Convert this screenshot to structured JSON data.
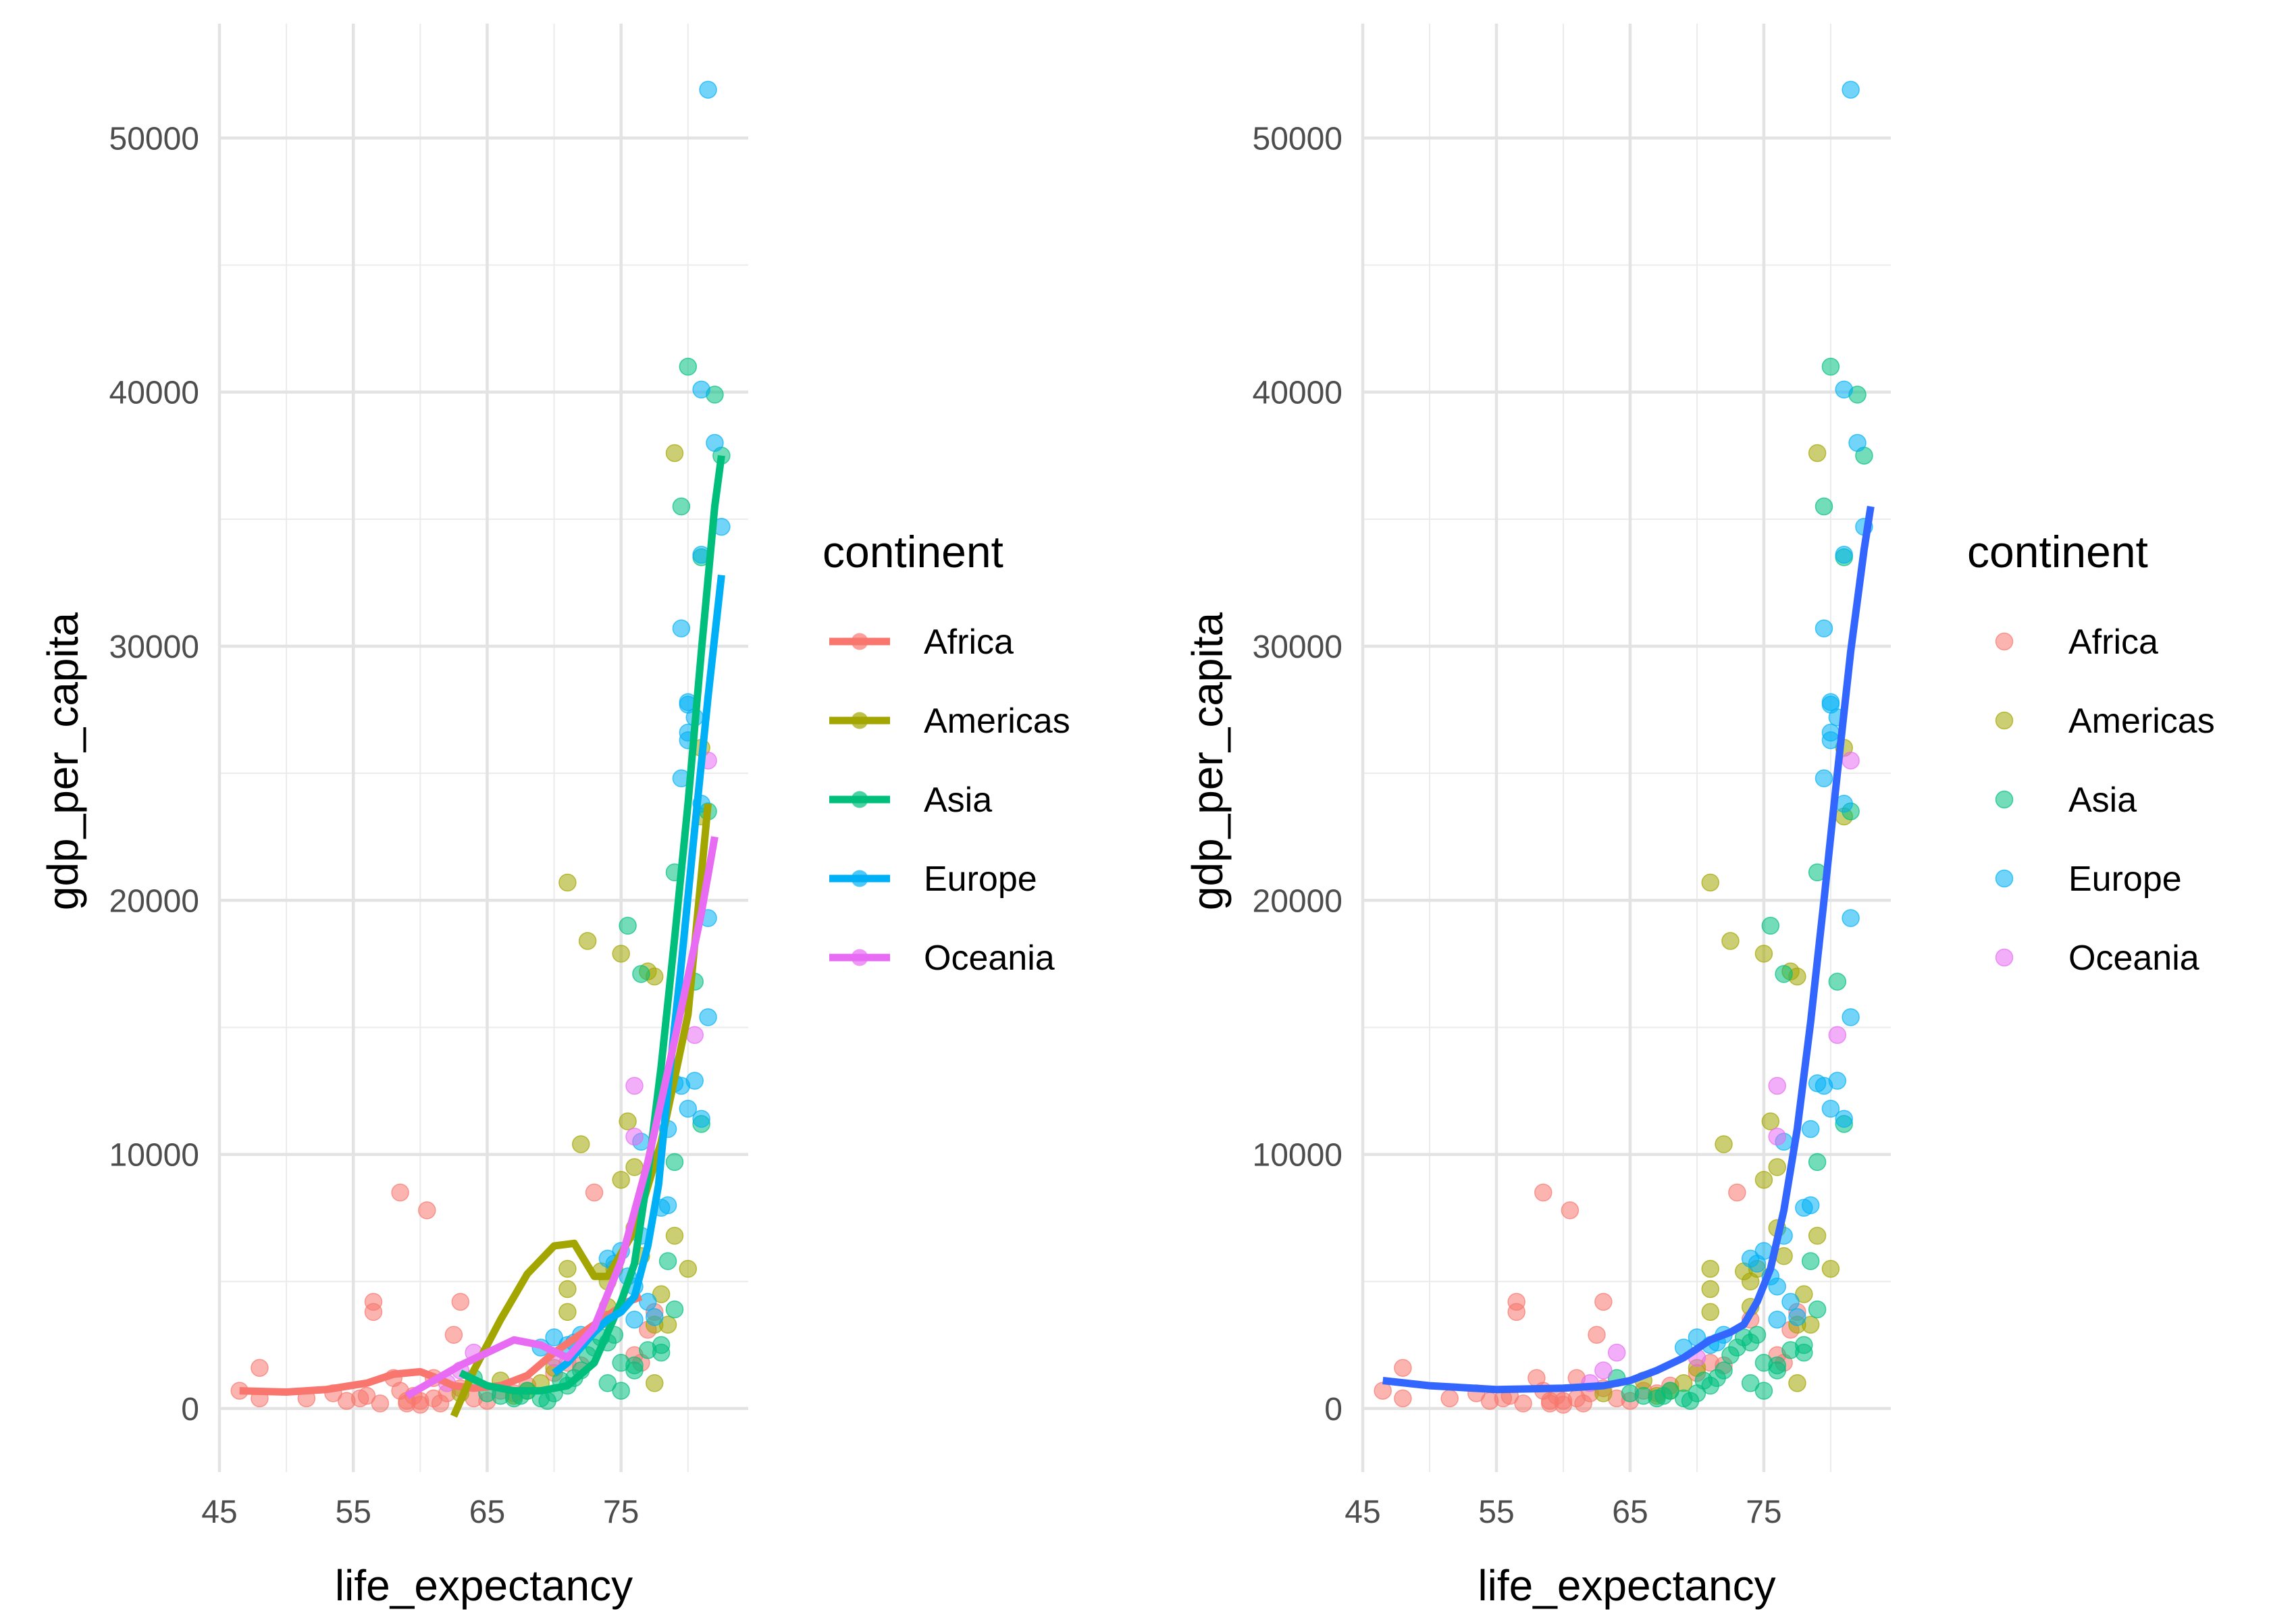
{
  "chart_data": [
    {
      "type": "scatter",
      "smoother": "loess per continent",
      "xlabel": "life_expectancy",
      "ylabel": "gdp_per_capita",
      "x_ticks": [
        45,
        55,
        65,
        75
      ],
      "y_ticks": [
        0,
        10000,
        20000,
        30000,
        40000,
        50000
      ],
      "xlim": [
        45,
        84.5
      ],
      "ylim": [
        -2500,
        54500
      ],
      "grid": true,
      "legend": {
        "title": "continent",
        "position": "right",
        "entries": [
          "Africa",
          "Americas",
          "Asia",
          "Europe",
          "Oceania"
        ],
        "key": "point+line"
      },
      "series": [
        {
          "name": "Africa",
          "color": "#F8766D",
          "curve": [
            [
              46.5,
              700
            ],
            [
              50,
              650
            ],
            [
              53,
              750
            ],
            [
              56,
              1000
            ],
            [
              58,
              1350
            ],
            [
              60,
              1450
            ],
            [
              61,
              1250
            ],
            [
              62.5,
              900
            ],
            [
              64,
              800
            ],
            [
              66,
              900
            ],
            [
              68,
              1300
            ],
            [
              70,
              2200
            ],
            [
              73,
              3300
            ],
            [
              75.5,
              4200
            ],
            [
              76.5,
              4400
            ]
          ]
        },
        {
          "name": "Americas",
          "color": "#A3A500",
          "curve": [
            [
              62.5,
              -300
            ],
            [
              64,
              1500
            ],
            [
              66,
              3500
            ],
            [
              68,
              5300
            ],
            [
              70,
              6400
            ],
            [
              71.5,
              6500
            ],
            [
              73,
              5200
            ],
            [
              74,
              5200
            ],
            [
              76,
              7000
            ],
            [
              78,
              10500
            ],
            [
              80,
              15500
            ],
            [
              81,
              21000
            ],
            [
              81.5,
              23800
            ]
          ]
        },
        {
          "name": "Asia",
          "color": "#00BF7D",
          "curve": [
            [
              63,
              1400
            ],
            [
              65,
              900
            ],
            [
              67,
              700
            ],
            [
              69,
              700
            ],
            [
              71,
              900
            ],
            [
              73,
              1800
            ],
            [
              75,
              4200
            ],
            [
              76,
              5700
            ],
            [
              77,
              9200
            ],
            [
              78,
              13500
            ],
            [
              79,
              18500
            ],
            [
              80,
              23800
            ],
            [
              81,
              29800
            ],
            [
              82,
              35500
            ],
            [
              82.5,
              37500
            ]
          ]
        },
        {
          "name": "Europe",
          "color": "#00B0F6",
          "curve": [
            [
              70,
              1400
            ],
            [
              71,
              1800
            ],
            [
              72,
              2400
            ],
            [
              73,
              3000
            ],
            [
              74,
              3500
            ],
            [
              75,
              3800
            ],
            [
              76,
              4400
            ],
            [
              77,
              6400
            ],
            [
              77.8,
              8800
            ],
            [
              78.5,
              12600
            ],
            [
              79.5,
              17500
            ],
            [
              80.5,
              22800
            ],
            [
              81.5,
              28000
            ],
            [
              82.5,
              32800
            ]
          ]
        },
        {
          "name": "Oceania",
          "color": "#E76BF3",
          "curve": [
            [
              59,
              500
            ],
            [
              61,
              1100
            ],
            [
              63,
              1700
            ],
            [
              65,
              2200
            ],
            [
              67,
              2700
            ],
            [
              69,
              2500
            ],
            [
              71,
              2000
            ],
            [
              73,
              3200
            ],
            [
              75,
              5800
            ],
            [
              77,
              9700
            ],
            [
              79,
              14500
            ],
            [
              81,
              19500
            ],
            [
              82,
              22500
            ]
          ]
        }
      ]
    },
    {
      "type": "scatter",
      "smoother": "loess overall",
      "xlabel": "life_expectancy",
      "ylabel": "gdp_per_capita",
      "x_ticks": [
        45,
        55,
        65,
        75
      ],
      "y_ticks": [
        0,
        10000,
        20000,
        30000,
        40000,
        50000
      ],
      "xlim": [
        45,
        84.5
      ],
      "ylim": [
        -2500,
        54500
      ],
      "grid": true,
      "legend": {
        "title": "continent",
        "position": "right",
        "entries": [
          "Africa",
          "Americas",
          "Asia",
          "Europe",
          "Oceania"
        ],
        "key": "point"
      },
      "smooth_color": "#3366FF",
      "smooth_curve": [
        [
          46.5,
          1100
        ],
        [
          50,
          900
        ],
        [
          55,
          750
        ],
        [
          60,
          800
        ],
        [
          63,
          900
        ],
        [
          65,
          1100
        ],
        [
          67,
          1500
        ],
        [
          69,
          2000
        ],
        [
          71,
          2700
        ],
        [
          72.5,
          3000
        ],
        [
          73.5,
          3300
        ],
        [
          74.5,
          4200
        ],
        [
          75.5,
          5500
        ],
        [
          76.5,
          7800
        ],
        [
          77.5,
          11000
        ],
        [
          78.5,
          15200
        ],
        [
          79.5,
          20000
        ],
        [
          80.5,
          25000
        ],
        [
          81.5,
          29800
        ],
        [
          82.5,
          33800
        ],
        [
          83,
          35500
        ]
      ]
    }
  ],
  "points": {
    "Africa": [
      [
        46.5,
        700
      ],
      [
        48,
        1600
      ],
      [
        48,
        400
      ],
      [
        51.5,
        400
      ],
      [
        53.5,
        600
      ],
      [
        54.5,
        300
      ],
      [
        55.5,
        400
      ],
      [
        56,
        500
      ],
      [
        56.5,
        4200
      ],
      [
        56.5,
        3800
      ],
      [
        57,
        200
      ],
      [
        58,
        1200
      ],
      [
        58.5,
        700
      ],
      [
        58.5,
        8500
      ],
      [
        59,
        300
      ],
      [
        59,
        200
      ],
      [
        59.5,
        500
      ],
      [
        60,
        300
      ],
      [
        60,
        150
      ],
      [
        60.5,
        7800
      ],
      [
        61,
        1200
      ],
      [
        61,
        400
      ],
      [
        61.5,
        200
      ],
      [
        62,
        600
      ],
      [
        62.5,
        2900
      ],
      [
        63,
        4200
      ],
      [
        63,
        800
      ],
      [
        64,
        400
      ],
      [
        65,
        300
      ],
      [
        66,
        700
      ],
      [
        67,
        600
      ],
      [
        68,
        900
      ],
      [
        70,
        1400
      ],
      [
        71,
        1800
      ],
      [
        72,
        1700
      ],
      [
        73,
        8500
      ],
      [
        74,
        3500
      ],
      [
        76,
        2100
      ],
      [
        76.5,
        1800
      ],
      [
        77,
        3100
      ],
      [
        77.5,
        3800
      ]
    ],
    "Americas": [
      [
        63,
        600
      ],
      [
        66,
        1100
      ],
      [
        67,
        500
      ],
      [
        68,
        700
      ],
      [
        69,
        1000
      ],
      [
        70,
        1600
      ],
      [
        71,
        20700
      ],
      [
        71,
        5500
      ],
      [
        71,
        4700
      ],
      [
        71,
        3800
      ],
      [
        72,
        10400
      ],
      [
        72.5,
        18400
      ],
      [
        73.5,
        5400
      ],
      [
        74,
        5000
      ],
      [
        74,
        4000
      ],
      [
        74.5,
        5500
      ],
      [
        75,
        17900
      ],
      [
        75,
        9000
      ],
      [
        75.5,
        11300
      ],
      [
        76,
        9500
      ],
      [
        76,
        7100
      ],
      [
        76.5,
        6000
      ],
      [
        77,
        17200
      ],
      [
        77.5,
        17000
      ],
      [
        77.5,
        3300
      ],
      [
        77.5,
        1000
      ],
      [
        78,
        4500
      ],
      [
        78.5,
        3300
      ],
      [
        79,
        37600
      ],
      [
        79,
        6800
      ],
      [
        80,
        5500
      ],
      [
        81,
        26000
      ],
      [
        81,
        23300
      ]
    ],
    "Asia": [
      [
        64,
        1200
      ],
      [
        65,
        600
      ],
      [
        66,
        500
      ],
      [
        67,
        400
      ],
      [
        67.5,
        500
      ],
      [
        68,
        700
      ],
      [
        69,
        400
      ],
      [
        69.5,
        300
      ],
      [
        70,
        600
      ],
      [
        70.5,
        1100
      ],
      [
        71,
        900
      ],
      [
        71.5,
        1200
      ],
      [
        72,
        1500
      ],
      [
        72.5,
        2100
      ],
      [
        73,
        2400
      ],
      [
        73.5,
        2800
      ],
      [
        74,
        2600
      ],
      [
        74,
        1000
      ],
      [
        74.5,
        2900
      ],
      [
        75,
        1800
      ],
      [
        75,
        700
      ],
      [
        75.5,
        19000
      ],
      [
        76,
        1700
      ],
      [
        76,
        1500
      ],
      [
        76.5,
        17100
      ],
      [
        77,
        2300
      ],
      [
        78,
        2200
      ],
      [
        78,
        2500
      ],
      [
        78.5,
        5800
      ],
      [
        79,
        21100
      ],
      [
        79,
        9700
      ],
      [
        79,
        3900
      ],
      [
        79.5,
        35500
      ],
      [
        80,
        41000
      ],
      [
        80.5,
        16800
      ],
      [
        81,
        11200
      ],
      [
        81,
        33500
      ],
      [
        81.5,
        23500
      ],
      [
        82,
        39900
      ],
      [
        82.5,
        37500
      ]
    ],
    "Europe": [
      [
        69,
        2400
      ],
      [
        70,
        2800
      ],
      [
        71,
        2500
      ],
      [
        71.5,
        2600
      ],
      [
        72,
        2900
      ],
      [
        74,
        5900
      ],
      [
        74.5,
        5700
      ],
      [
        75,
        6200
      ],
      [
        75.5,
        5200
      ],
      [
        76,
        4800
      ],
      [
        76,
        3500
      ],
      [
        76.5,
        10500
      ],
      [
        76.5,
        6800
      ],
      [
        77,
        4200
      ],
      [
        77.5,
        3600
      ],
      [
        78,
        7900
      ],
      [
        78.5,
        8000
      ],
      [
        78.5,
        11000
      ],
      [
        79,
        12800
      ],
      [
        79.5,
        12700
      ],
      [
        79.5,
        24800
      ],
      [
        79.5,
        30700
      ],
      [
        80,
        11800
      ],
      [
        80,
        27800
      ],
      [
        80,
        27700
      ],
      [
        80,
        26600
      ],
      [
        80,
        26300
      ],
      [
        80.5,
        12900
      ],
      [
        80.5,
        27200
      ],
      [
        81,
        11400
      ],
      [
        81,
        40100
      ],
      [
        81,
        33600
      ],
      [
        81,
        23800
      ],
      [
        81.5,
        51900
      ],
      [
        81.5,
        19300
      ],
      [
        81.5,
        15400
      ],
      [
        82,
        38000
      ],
      [
        82.5,
        34700
      ]
    ],
    "Oceania": [
      [
        62,
        1000
      ],
      [
        63,
        1500
      ],
      [
        64,
        2200
      ],
      [
        70,
        2000
      ],
      [
        76,
        12700
      ],
      [
        76,
        10700
      ],
      [
        80.5,
        14700
      ],
      [
        81.5,
        25500
      ]
    ]
  }
}
